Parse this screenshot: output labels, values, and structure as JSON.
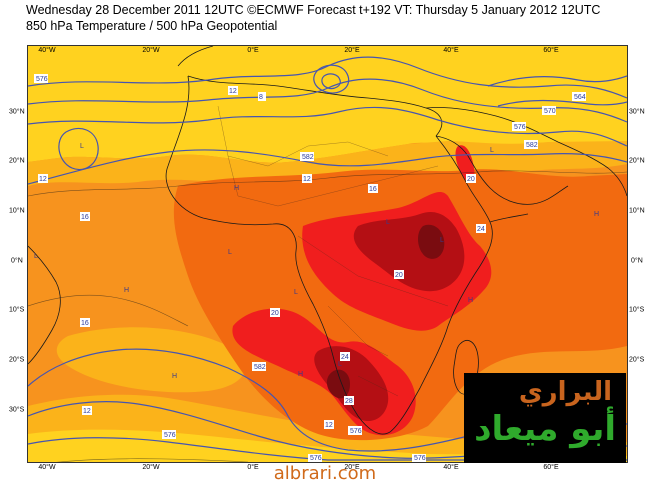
{
  "title_line1": "Wednesday 28 December 2011 12UTC ©ECMWF Forecast t+192 VT: Thursday 5 January 2012 12UTC",
  "title_line2": "850 hPa Temperature / 500 hPa Geopotential",
  "lon_labels_top": [
    "40°W",
    "20°W",
    "0°E",
    "20°E",
    "40°E",
    "60°E"
  ],
  "lon_labels_bottom": [
    "40°W",
    "20°W",
    "0°E",
    "20°E",
    "40°E",
    "60°E"
  ],
  "lat_labels_left": [
    "30°N",
    "20°N",
    "10°N",
    "0°N",
    "10°S",
    "20°S",
    "30°S"
  ],
  "lat_labels_right": [
    "30°N",
    "20°N",
    "10°N",
    "0°N",
    "10°S",
    "20°S",
    "30°S"
  ],
  "contour_labels": [
    "576",
    "582",
    "582",
    "576",
    "12",
    "12",
    "16",
    "16",
    "16",
    "20",
    "20",
    "24",
    "24",
    "28",
    "12",
    "12",
    "20",
    "576",
    "582",
    "576",
    "576",
    "576",
    "8",
    "12",
    "564",
    "570"
  ],
  "pressure_centers": [
    "L",
    "L",
    "H",
    "H",
    "H",
    "L",
    "L",
    "L",
    "L",
    "L",
    "H",
    "H",
    "H",
    "L",
    "L"
  ],
  "colors": {
    "warm_yellow": "#ffd21f",
    "orange": "#f7931e",
    "dark_orange": "#f26a10",
    "red": "#f01e1e",
    "dark_red": "#b40f14",
    "maroon": "#7a0c10",
    "contour_blue": "#4655b0",
    "coast_black": "#1a1a1a"
  },
  "logo": {
    "line1": "البراري",
    "line2": "أبو ميعاد"
  },
  "footer": "albrari.com"
}
